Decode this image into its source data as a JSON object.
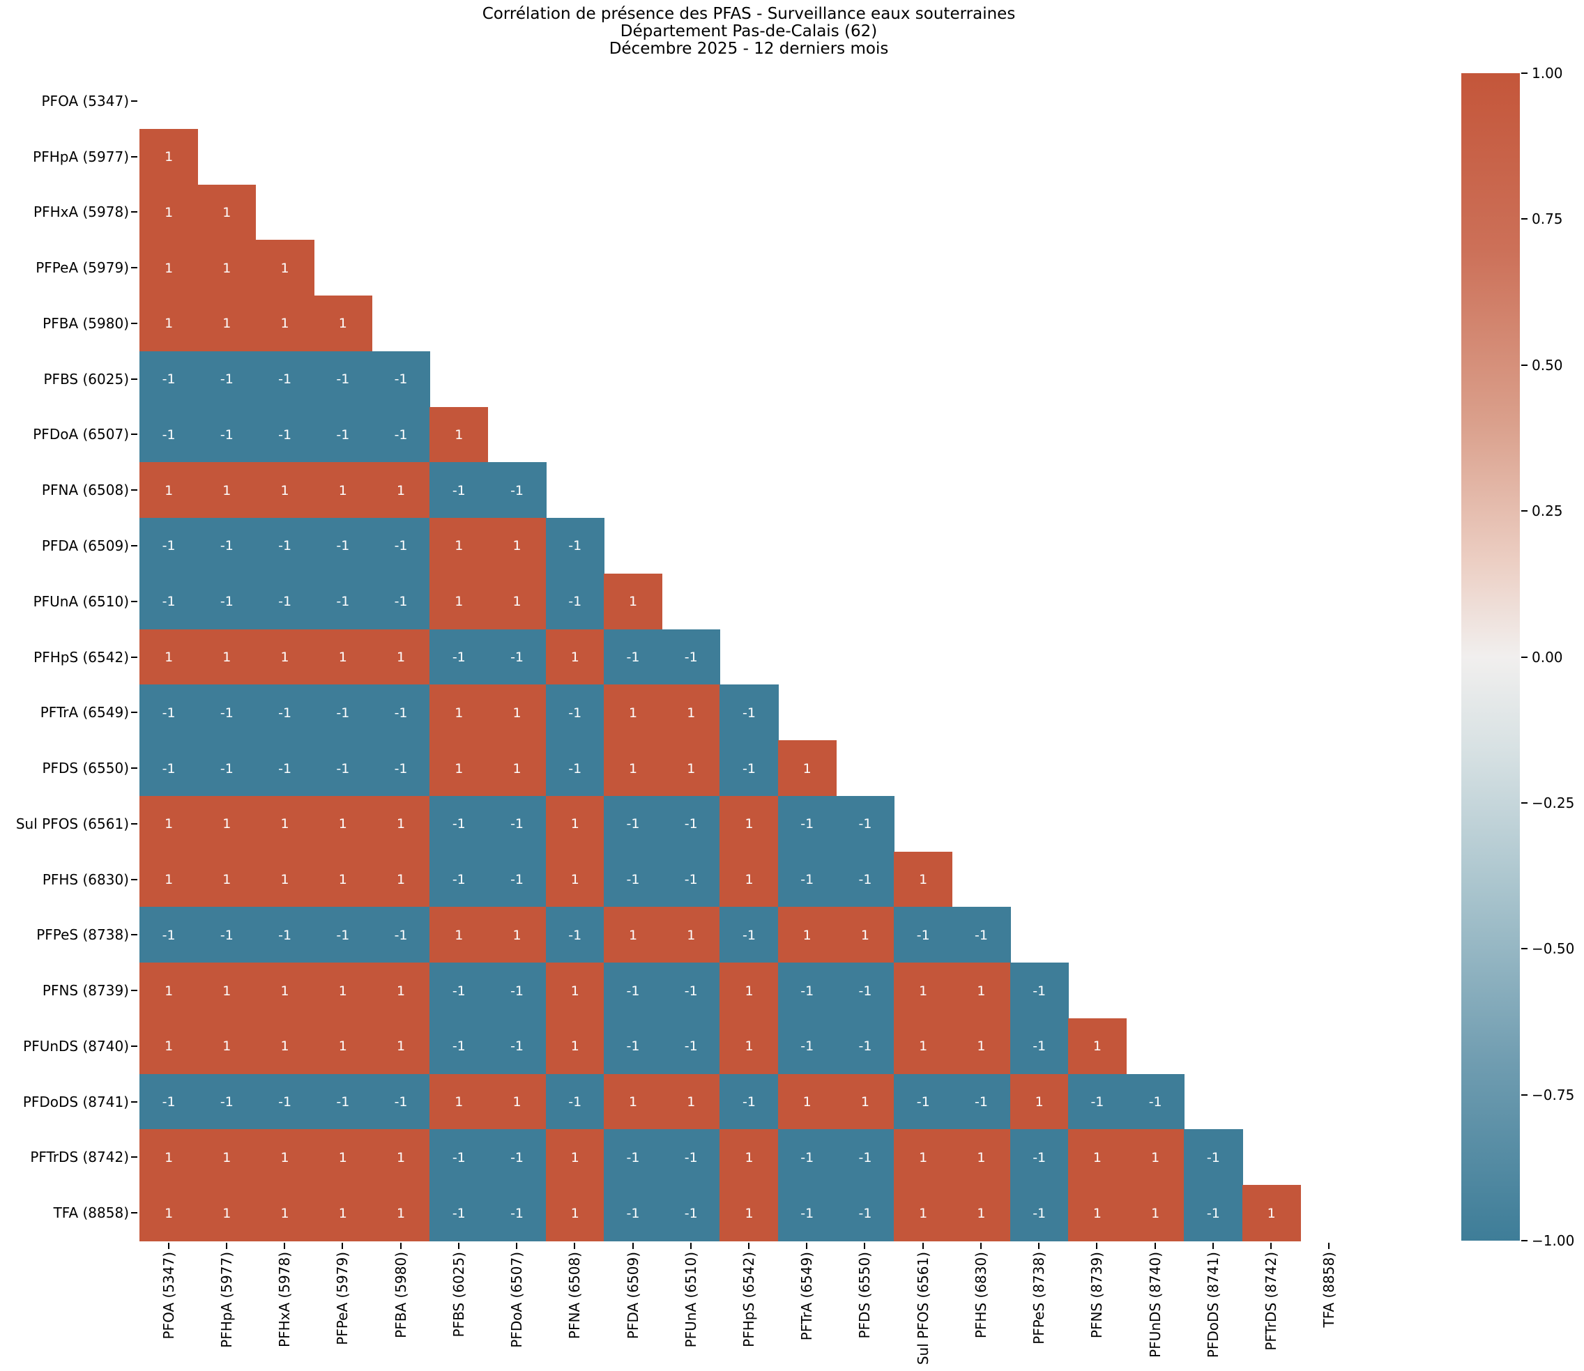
{
  "title": {
    "line1": "Corrélation de présence des PFAS - Surveillance eaux souterraines",
    "line2": "Département Pas-de-Calais (62)",
    "line3": "Décembre 2025 - 12 derniers mois"
  },
  "colors": {
    "positive": "#c4563a",
    "negative": "#3e7d98",
    "mid": "#f1efee",
    "cell_text": "#ffffff",
    "label_text": "#000000",
    "background": "#ffffff"
  },
  "chart_data": {
    "type": "heatmap",
    "title": "Corrélation de présence des PFAS - Surveillance eaux souterraines\nDépartement Pas-de-Calais (62)\nDécembre 2025 - 12 derniers mois",
    "mask": "upper-triangle-and-diagonal-hidden",
    "annotated": true,
    "grid": false,
    "labels": [
      "PFOA (5347)",
      "PFHpA (5977)",
      "PFHxA (5978)",
      "PFPeA (5979)",
      "PFBA (5980)",
      "PFBS (6025)",
      "PFDoA (6507)",
      "PFNA (6508)",
      "PFDA (6509)",
      "PFUnA (6510)",
      "PFHpS (6542)",
      "PFTrA (6549)",
      "PFDS (6550)",
      "Sul PFOS (6561)",
      "PFHS (6830)",
      "PFPeS (8738)",
      "PFNS (8739)",
      "PFUnDS (8740)",
      "PFDoDS (8741)",
      "PFTrDS (8742)",
      "TFA (8858)"
    ],
    "matrix": [
      [
        null,
        null,
        null,
        null,
        null,
        null,
        null,
        null,
        null,
        null,
        null,
        null,
        null,
        null,
        null,
        null,
        null,
        null,
        null,
        null,
        null
      ],
      [
        1,
        null,
        null,
        null,
        null,
        null,
        null,
        null,
        null,
        null,
        null,
        null,
        null,
        null,
        null,
        null,
        null,
        null,
        null,
        null,
        null
      ],
      [
        1,
        1,
        null,
        null,
        null,
        null,
        null,
        null,
        null,
        null,
        null,
        null,
        null,
        null,
        null,
        null,
        null,
        null,
        null,
        null,
        null
      ],
      [
        1,
        1,
        1,
        null,
        null,
        null,
        null,
        null,
        null,
        null,
        null,
        null,
        null,
        null,
        null,
        null,
        null,
        null,
        null,
        null,
        null
      ],
      [
        1,
        1,
        1,
        1,
        null,
        null,
        null,
        null,
        null,
        null,
        null,
        null,
        null,
        null,
        null,
        null,
        null,
        null,
        null,
        null,
        null
      ],
      [
        -1,
        -1,
        -1,
        -1,
        -1,
        null,
        null,
        null,
        null,
        null,
        null,
        null,
        null,
        null,
        null,
        null,
        null,
        null,
        null,
        null,
        null
      ],
      [
        -1,
        -1,
        -1,
        -1,
        -1,
        1,
        null,
        null,
        null,
        null,
        null,
        null,
        null,
        null,
        null,
        null,
        null,
        null,
        null,
        null,
        null
      ],
      [
        1,
        1,
        1,
        1,
        1,
        -1,
        -1,
        null,
        null,
        null,
        null,
        null,
        null,
        null,
        null,
        null,
        null,
        null,
        null,
        null,
        null
      ],
      [
        -1,
        -1,
        -1,
        -1,
        -1,
        1,
        1,
        -1,
        null,
        null,
        null,
        null,
        null,
        null,
        null,
        null,
        null,
        null,
        null,
        null,
        null
      ],
      [
        -1,
        -1,
        -1,
        -1,
        -1,
        1,
        1,
        -1,
        1,
        null,
        null,
        null,
        null,
        null,
        null,
        null,
        null,
        null,
        null,
        null,
        null
      ],
      [
        1,
        1,
        1,
        1,
        1,
        -1,
        -1,
        1,
        -1,
        -1,
        null,
        null,
        null,
        null,
        null,
        null,
        null,
        null,
        null,
        null,
        null
      ],
      [
        -1,
        -1,
        -1,
        -1,
        -1,
        1,
        1,
        -1,
        1,
        1,
        -1,
        null,
        null,
        null,
        null,
        null,
        null,
        null,
        null,
        null,
        null
      ],
      [
        -1,
        -1,
        -1,
        -1,
        -1,
        1,
        1,
        -1,
        1,
        1,
        -1,
        1,
        null,
        null,
        null,
        null,
        null,
        null,
        null,
        null,
        null
      ],
      [
        1,
        1,
        1,
        1,
        1,
        -1,
        -1,
        1,
        -1,
        -1,
        1,
        -1,
        -1,
        null,
        null,
        null,
        null,
        null,
        null,
        null,
        null
      ],
      [
        1,
        1,
        1,
        1,
        1,
        -1,
        -1,
        1,
        -1,
        -1,
        1,
        -1,
        -1,
        1,
        null,
        null,
        null,
        null,
        null,
        null,
        null
      ],
      [
        -1,
        -1,
        -1,
        -1,
        -1,
        1,
        1,
        -1,
        1,
        1,
        -1,
        1,
        1,
        -1,
        -1,
        null,
        null,
        null,
        null,
        null,
        null
      ],
      [
        1,
        1,
        1,
        1,
        1,
        -1,
        -1,
        1,
        -1,
        -1,
        1,
        -1,
        -1,
        1,
        1,
        -1,
        null,
        null,
        null,
        null,
        null
      ],
      [
        1,
        1,
        1,
        1,
        1,
        -1,
        -1,
        1,
        -1,
        -1,
        1,
        -1,
        -1,
        1,
        1,
        -1,
        1,
        null,
        null,
        null,
        null
      ],
      [
        -1,
        -1,
        -1,
        -1,
        -1,
        1,
        1,
        -1,
        1,
        1,
        -1,
        1,
        1,
        -1,
        -1,
        1,
        -1,
        -1,
        null,
        null,
        null
      ],
      [
        1,
        1,
        1,
        1,
        1,
        -1,
        -1,
        1,
        -1,
        -1,
        1,
        -1,
        -1,
        1,
        1,
        -1,
        1,
        1,
        -1,
        null,
        null
      ],
      [
        1,
        1,
        1,
        1,
        1,
        -1,
        -1,
        1,
        -1,
        -1,
        1,
        -1,
        -1,
        1,
        1,
        -1,
        1,
        1,
        -1,
        1,
        null
      ]
    ],
    "colorbar": {
      "min": -1,
      "max": 1,
      "tick_labels": [
        "1.00",
        "0.75",
        "0.50",
        "0.25",
        "0.00",
        "−0.25",
        "−0.50",
        "−0.75",
        "−1.00"
      ],
      "position": "right"
    }
  }
}
